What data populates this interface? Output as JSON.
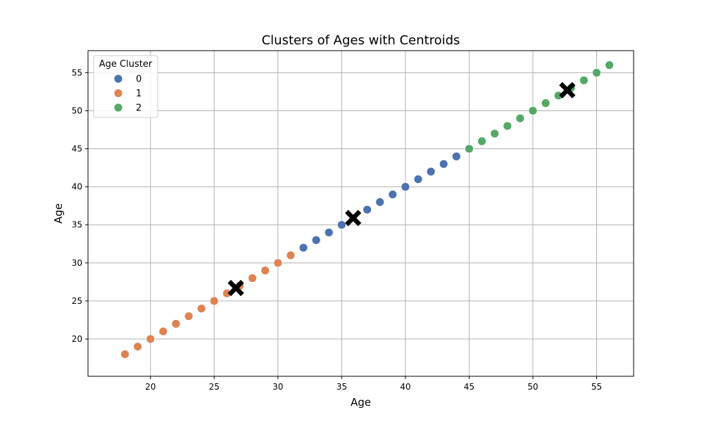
{
  "chart_data": {
    "type": "scatter",
    "title": "Clusters of Ages with Centroids",
    "xlabel": "Age",
    "ylabel": "Age",
    "xlim": [
      15.1,
      57.9
    ],
    "ylim": [
      15.1,
      57.9
    ],
    "xticks": [
      "20",
      "25",
      "30",
      "35",
      "40",
      "45",
      "50",
      "55"
    ],
    "yticks": [
      "20",
      "25",
      "30",
      "35",
      "40",
      "45",
      "50",
      "55"
    ],
    "grid": true,
    "legend": {
      "title": "Age Cluster",
      "placement": "top-left",
      "entries": [
        "0",
        "1",
        "2"
      ]
    },
    "series": [
      {
        "name": "0",
        "color": "#4c72b0",
        "x": [
          32,
          33,
          34,
          35,
          37,
          38,
          39,
          40,
          41,
          42,
          43,
          44
        ],
        "y": [
          32,
          33,
          34,
          35,
          37,
          38,
          39,
          40,
          41,
          42,
          43,
          44
        ]
      },
      {
        "name": "1",
        "color": "#dd8452",
        "x": [
          18,
          19,
          20,
          21,
          22,
          23,
          24,
          25,
          26,
          27,
          28,
          29,
          30,
          31
        ],
        "y": [
          18,
          19,
          20,
          21,
          22,
          23,
          24,
          25,
          26,
          27,
          28,
          29,
          30,
          31
        ]
      },
      {
        "name": "2",
        "color": "#55a868",
        "x": [
          45,
          46,
          47,
          48,
          49,
          50,
          51,
          52,
          53,
          54,
          55,
          56
        ],
        "y": [
          45,
          46,
          47,
          48,
          49,
          50,
          51,
          52,
          53,
          54,
          55,
          56
        ]
      }
    ],
    "centroids": {
      "marker": "X",
      "color": "#000000",
      "points": [
        {
          "x": 26.7,
          "y": 26.7
        },
        {
          "x": 35.9,
          "y": 35.9
        },
        {
          "x": 52.7,
          "y": 52.7
        }
      ]
    }
  }
}
